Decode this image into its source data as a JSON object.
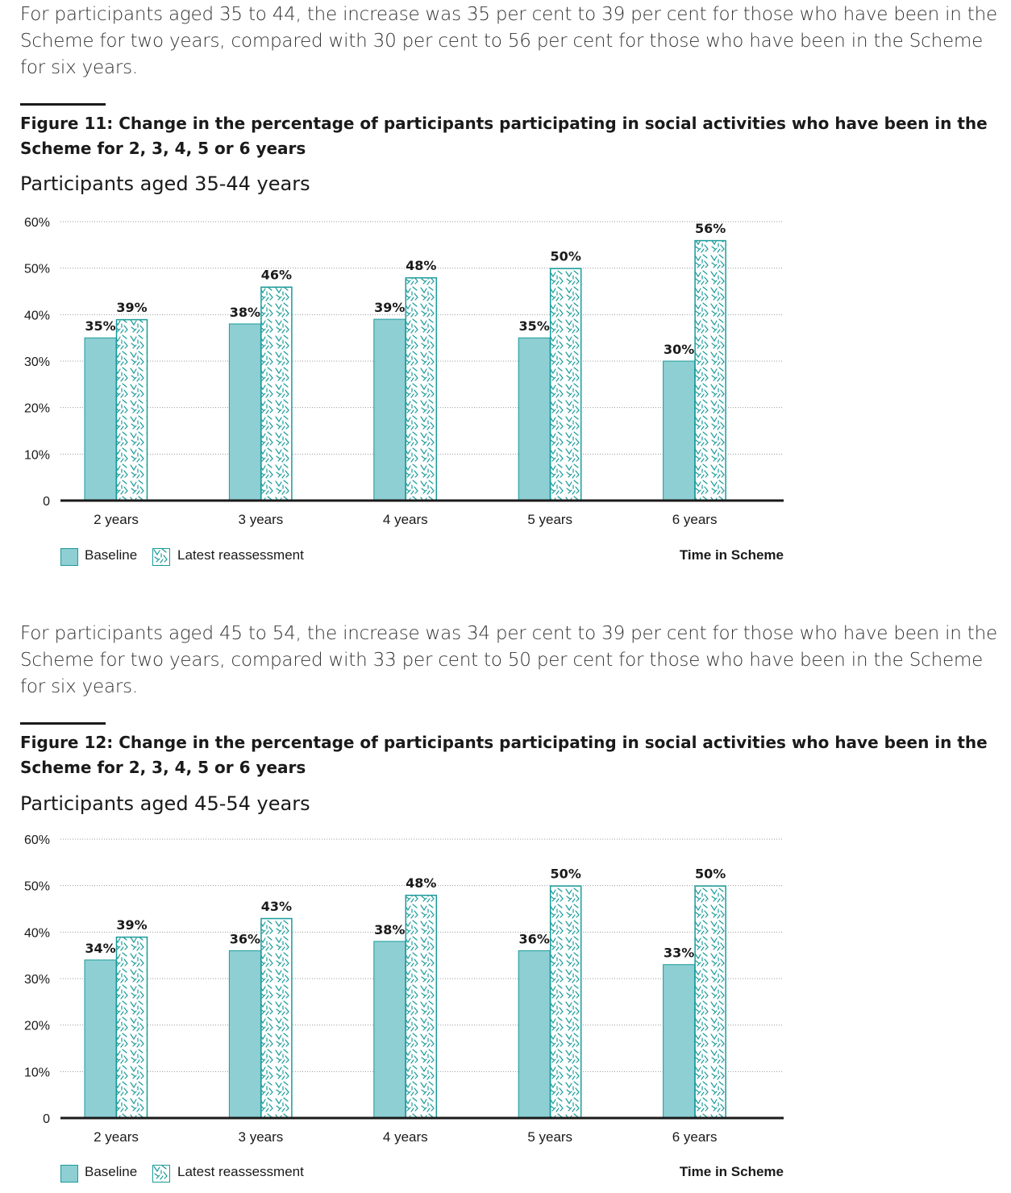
{
  "paragraphs": [
    "For participants aged 35 to 44, the increase was 35 per cent to 39 per cent for those who have been in the Scheme for two years, compared with 30 per cent to 56 per cent for those who have been in the Scheme for six years.",
    "For participants aged 45 to 54, the increase was 34 per cent to 39 per cent for those who have been in the Scheme for two years, compared with 33 per cent to 50 per cent for those who have been in the Scheme for six years."
  ],
  "colors": {
    "baseline": "#8ecfd3",
    "baseline_border": "#1a9a9a",
    "latest_pattern": "#1a9a9a",
    "axis": "#1a1a1a",
    "grid": "#9a9a9a"
  },
  "legend": {
    "baseline": "Baseline",
    "latest": "Latest reassessment",
    "axis_note": "Time in Scheme"
  },
  "chart_data": [
    {
      "type": "bar",
      "title": "Figure 11: Change in the percentage of participants participating in social activities who have been in the Scheme for 2, 3, 4, 5 or 6 years",
      "subtitle": "Participants aged 35-44 years",
      "xlabel": "Time in Scheme",
      "ylabel": "",
      "ylim": [
        0,
        60
      ],
      "yticks": [
        "0",
        "10%",
        "20%",
        "30%",
        "40%",
        "50%",
        "60%"
      ],
      "grid": true,
      "legend_position": "bottom-left",
      "categories": [
        "2 years",
        "3 years",
        "4 years",
        "5 years",
        "6 years"
      ],
      "series": [
        {
          "name": "Baseline",
          "values": [
            35,
            38,
            39,
            35,
            30
          ],
          "labels": [
            "35%",
            "38%",
            "39%",
            "35%",
            "30%"
          ]
        },
        {
          "name": "Latest reassessment",
          "values": [
            39,
            46,
            48,
            50,
            56
          ],
          "labels": [
            "39%",
            "46%",
            "48%",
            "50%",
            "56%"
          ]
        }
      ]
    },
    {
      "type": "bar",
      "title": "Figure 12: Change in the percentage of participants participating in social activities who have been in the Scheme for 2, 3, 4, 5 or 6 years",
      "subtitle": "Participants aged 45-54 years",
      "xlabel": "Time in Scheme",
      "ylabel": "",
      "ylim": [
        0,
        60
      ],
      "yticks": [
        "0",
        "10%",
        "20%",
        "30%",
        "40%",
        "50%",
        "60%"
      ],
      "grid": true,
      "legend_position": "bottom-left",
      "categories": [
        "2 years",
        "3 years",
        "4 years",
        "5 years",
        "6 years"
      ],
      "series": [
        {
          "name": "Baseline",
          "values": [
            34,
            36,
            38,
            36,
            33
          ],
          "labels": [
            "34%",
            "36%",
            "38%",
            "36%",
            "33%"
          ]
        },
        {
          "name": "Latest reassessment",
          "values": [
            39,
            43,
            48,
            50,
            50
          ],
          "labels": [
            "39%",
            "43%",
            "48%",
            "50%",
            "50%"
          ]
        }
      ]
    }
  ]
}
